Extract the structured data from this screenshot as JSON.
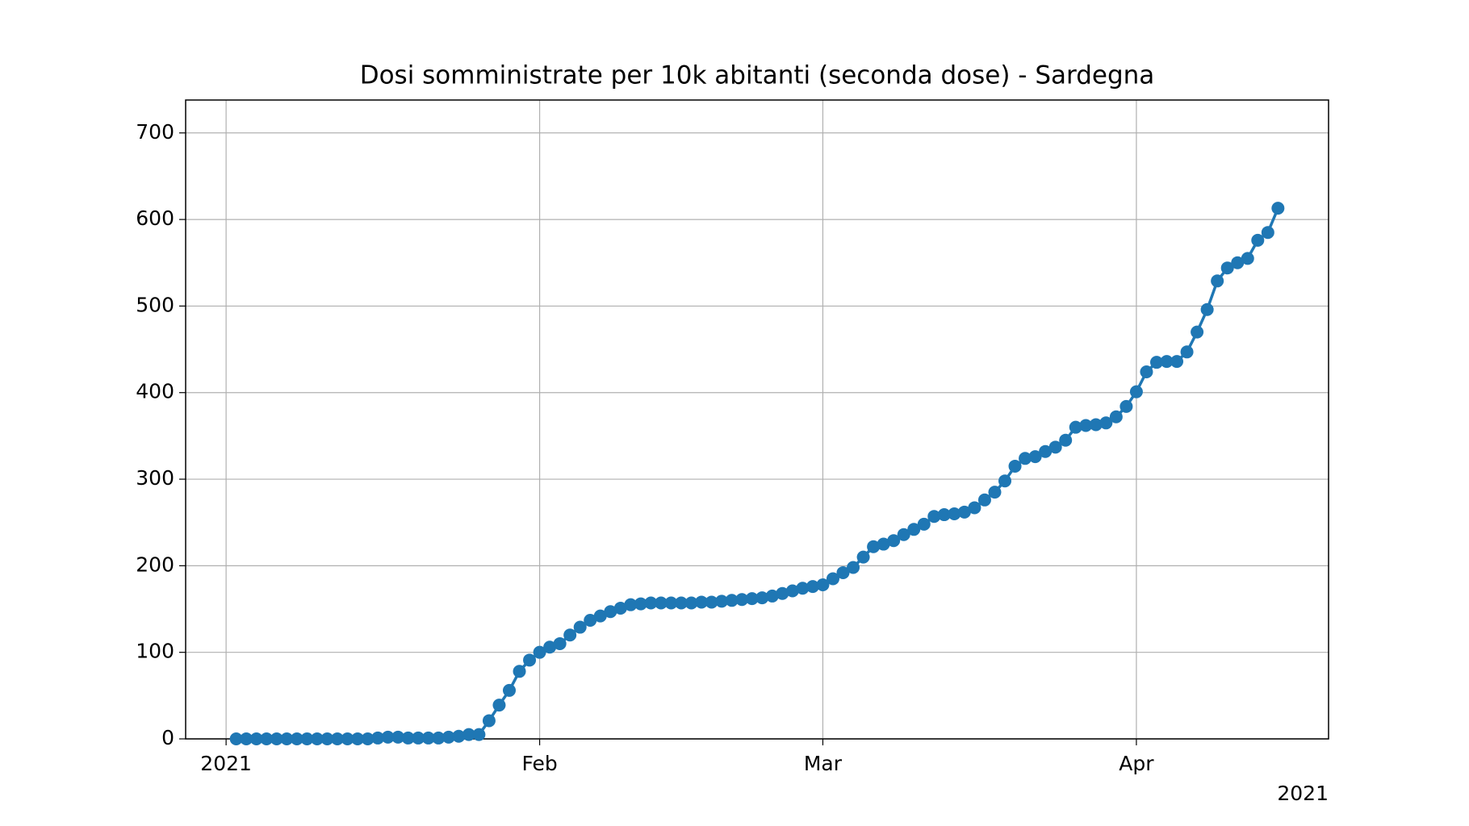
{
  "chart_data": {
    "type": "line",
    "title": "Dosi somministrate per 10k abitanti (seconda dose) - Sardegna",
    "x": [
      "2021-01-02",
      "2021-01-03",
      "2021-01-04",
      "2021-01-05",
      "2021-01-06",
      "2021-01-07",
      "2021-01-08",
      "2021-01-09",
      "2021-01-10",
      "2021-01-11",
      "2021-01-12",
      "2021-01-13",
      "2021-01-14",
      "2021-01-15",
      "2021-01-16",
      "2021-01-17",
      "2021-01-18",
      "2021-01-19",
      "2021-01-20",
      "2021-01-21",
      "2021-01-22",
      "2021-01-23",
      "2021-01-24",
      "2021-01-25",
      "2021-01-26",
      "2021-01-27",
      "2021-01-28",
      "2021-01-29",
      "2021-01-30",
      "2021-01-31",
      "2021-02-01",
      "2021-02-02",
      "2021-02-03",
      "2021-02-04",
      "2021-02-05",
      "2021-02-06",
      "2021-02-07",
      "2021-02-08",
      "2021-02-09",
      "2021-02-10",
      "2021-02-11",
      "2021-02-12",
      "2021-02-13",
      "2021-02-14",
      "2021-02-15",
      "2021-02-16",
      "2021-02-17",
      "2021-02-18",
      "2021-02-19",
      "2021-02-20",
      "2021-02-21",
      "2021-02-22",
      "2021-02-23",
      "2021-02-24",
      "2021-02-25",
      "2021-02-26",
      "2021-02-27",
      "2021-02-28",
      "2021-03-01",
      "2021-03-02",
      "2021-03-03",
      "2021-03-04",
      "2021-03-05",
      "2021-03-06",
      "2021-03-07",
      "2021-03-08",
      "2021-03-09",
      "2021-03-10",
      "2021-03-11",
      "2021-03-12",
      "2021-03-13",
      "2021-03-14",
      "2021-03-15",
      "2021-03-16",
      "2021-03-17",
      "2021-03-18",
      "2021-03-19",
      "2021-03-20",
      "2021-03-21",
      "2021-03-22",
      "2021-03-23",
      "2021-03-24",
      "2021-03-25",
      "2021-03-26",
      "2021-03-27",
      "2021-03-28",
      "2021-03-29",
      "2021-03-30",
      "2021-03-31",
      "2021-04-01",
      "2021-04-02",
      "2021-04-03",
      "2021-04-04",
      "2021-04-05",
      "2021-04-06",
      "2021-04-07",
      "2021-04-08",
      "2021-04-09",
      "2021-04-10",
      "2021-04-11",
      "2021-04-12",
      "2021-04-13",
      "2021-04-14",
      "2021-04-15"
    ],
    "values": [
      0,
      0,
      0,
      0,
      0,
      0,
      0,
      0,
      0,
      0,
      0,
      0,
      0,
      0,
      1,
      2,
      2,
      1,
      1,
      1,
      1,
      2,
      3,
      5,
      5,
      21,
      39,
      56,
      78,
      91,
      100,
      106,
      110,
      120,
      129,
      137,
      142,
      147,
      151,
      155,
      156,
      157,
      157,
      157,
      157,
      157,
      158,
      158,
      159,
      160,
      161,
      162,
      163,
      165,
      168,
      171,
      174,
      176,
      178,
      185,
      192,
      198,
      210,
      222,
      225,
      229,
      236,
      242,
      248,
      257,
      259,
      260,
      262,
      267,
      276,
      285,
      298,
      315,
      324,
      326,
      332,
      337,
      345,
      360,
      362,
      363,
      365,
      372,
      384,
      401,
      424,
      435,
      436,
      436,
      447,
      470,
      496,
      529,
      544,
      550,
      555,
      576,
      585,
      613
    ],
    "color": "#1f77b4",
    "xlim": [
      "2020-12-28",
      "2021-04-20"
    ],
    "xticks": [
      {
        "value": "2021-01-01",
        "label": "2021"
      },
      {
        "value": "2021-02-01",
        "label": "Feb"
      },
      {
        "value": "2021-03-01",
        "label": "Mar"
      },
      {
        "value": "2021-04-01",
        "label": "Apr"
      }
    ],
    "x_offset_label": "2021",
    "ylim": [
      0,
      738
    ],
    "yticks": [
      0,
      100,
      200,
      300,
      400,
      500,
      600,
      700
    ],
    "grid": true
  }
}
